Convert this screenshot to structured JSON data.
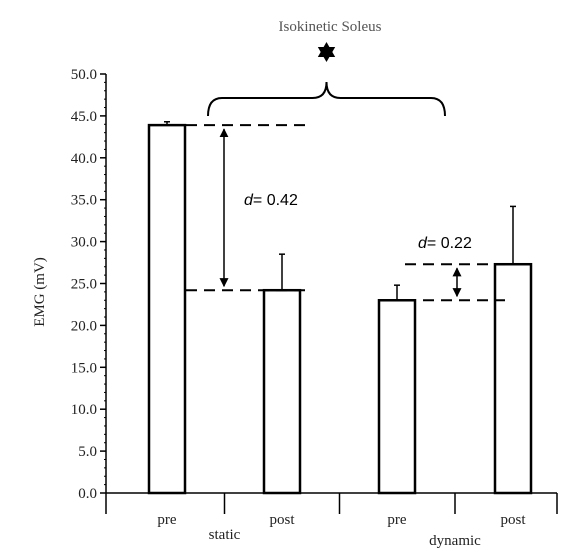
{
  "chart_data": {
    "type": "bar",
    "title": "Isokinetic Soleus",
    "xlabel": "",
    "ylabel": "EMG (mV)",
    "ylim": [
      0,
      50
    ],
    "y_ticks": [
      "0.0",
      "5.0",
      "10.0",
      "15.0",
      "20.0",
      "25.0",
      "30.0",
      "35.0",
      "40.0",
      "45.0",
      "50.0"
    ],
    "categories": [
      "pre",
      "post",
      "pre",
      "post"
    ],
    "groups": [
      {
        "label": "static",
        "categories": [
          0,
          1
        ]
      },
      {
        "label": "dynamic",
        "categories": [
          2,
          3
        ]
      }
    ],
    "values": [
      43.9,
      24.2,
      23.0,
      27.3
    ],
    "errors": [
      0.4,
      4.3,
      1.8,
      6.9
    ],
    "bar_fill": "#ffffff",
    "bar_stroke": "#000000",
    "grid": false,
    "annotations": [
      {
        "kind": "effect-size",
        "prefix": "d",
        "text": "= 0.42",
        "from": 43.9,
        "to": 24.2,
        "group": "static"
      },
      {
        "kind": "effect-size",
        "prefix": "d",
        "text": "= 0.22",
        "from": 27.3,
        "to": 23.0,
        "group": "dynamic"
      },
      {
        "kind": "significance-bracket",
        "icon": "star-icon",
        "spans": [
          "static",
          "dynamic"
        ]
      }
    ]
  }
}
